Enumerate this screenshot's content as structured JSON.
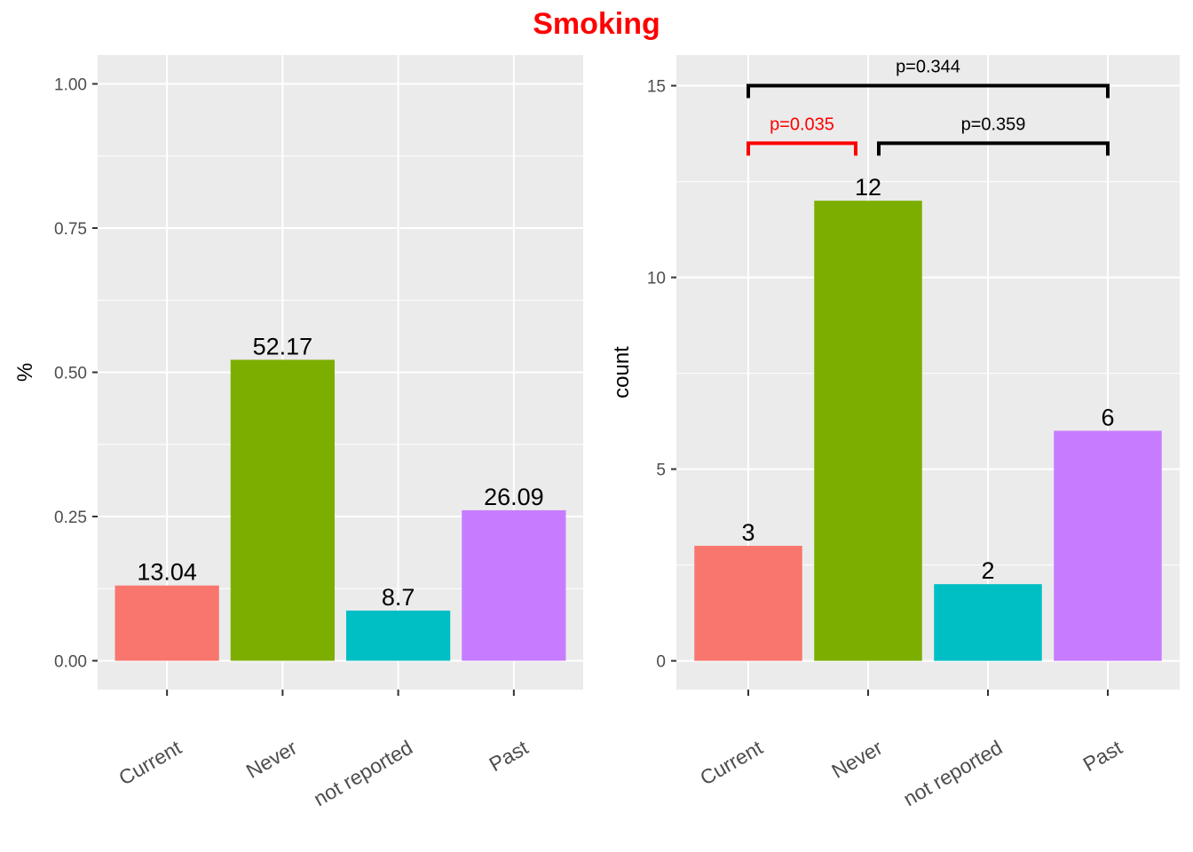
{
  "title": "Smoking",
  "colors": {
    "title": "#ff0000",
    "panel": "#ebebeb",
    "grid": "#ffffff",
    "significant": "#ff0000",
    "bracket": "#000000"
  },
  "chart_data": [
    {
      "type": "bar",
      "categories": [
        "Current",
        "Never",
        "not reported",
        "Past"
      ],
      "values": [
        0.1304,
        0.5217,
        0.087,
        0.2609
      ],
      "data_labels": [
        "13.04",
        "52.17",
        "8.7",
        "26.09"
      ],
      "bar_colors": [
        "#f8766d",
        "#7cae00",
        "#00bfc4",
        "#c77cff"
      ],
      "xlabel": "",
      "ylabel": "%",
      "ylim": [
        -0.05,
        1.05
      ],
      "yticks": [
        0,
        0.25,
        0.5,
        0.75,
        1
      ],
      "ytick_labels": [
        "0.00",
        "0.25",
        "0.50",
        "0.75",
        "1.00"
      ],
      "grid": true
    },
    {
      "type": "bar",
      "categories": [
        "Current",
        "Never",
        "not reported",
        "Past"
      ],
      "values": [
        3,
        12,
        2,
        6
      ],
      "data_labels": [
        "3",
        "12",
        "2",
        "6"
      ],
      "bar_colors": [
        "#f8766d",
        "#7cae00",
        "#00bfc4",
        "#c77cff"
      ],
      "xlabel": "",
      "ylabel": "count",
      "ylim": [
        -0.75,
        15.8
      ],
      "yticks": [
        0,
        5,
        10,
        15
      ],
      "ytick_labels": [
        "0",
        "5",
        "10",
        "15"
      ],
      "grid": true,
      "comparisons": [
        {
          "from": "Current",
          "to": "Never",
          "label": "p=0.035",
          "y": 13.5,
          "significant": true
        },
        {
          "from": "Never",
          "to": "Past",
          "label": "p=0.359",
          "y": 13.5,
          "significant": false
        },
        {
          "from": "Current",
          "to": "Past",
          "label": "p=0.344",
          "y": 15,
          "significant": false
        }
      ]
    }
  ]
}
